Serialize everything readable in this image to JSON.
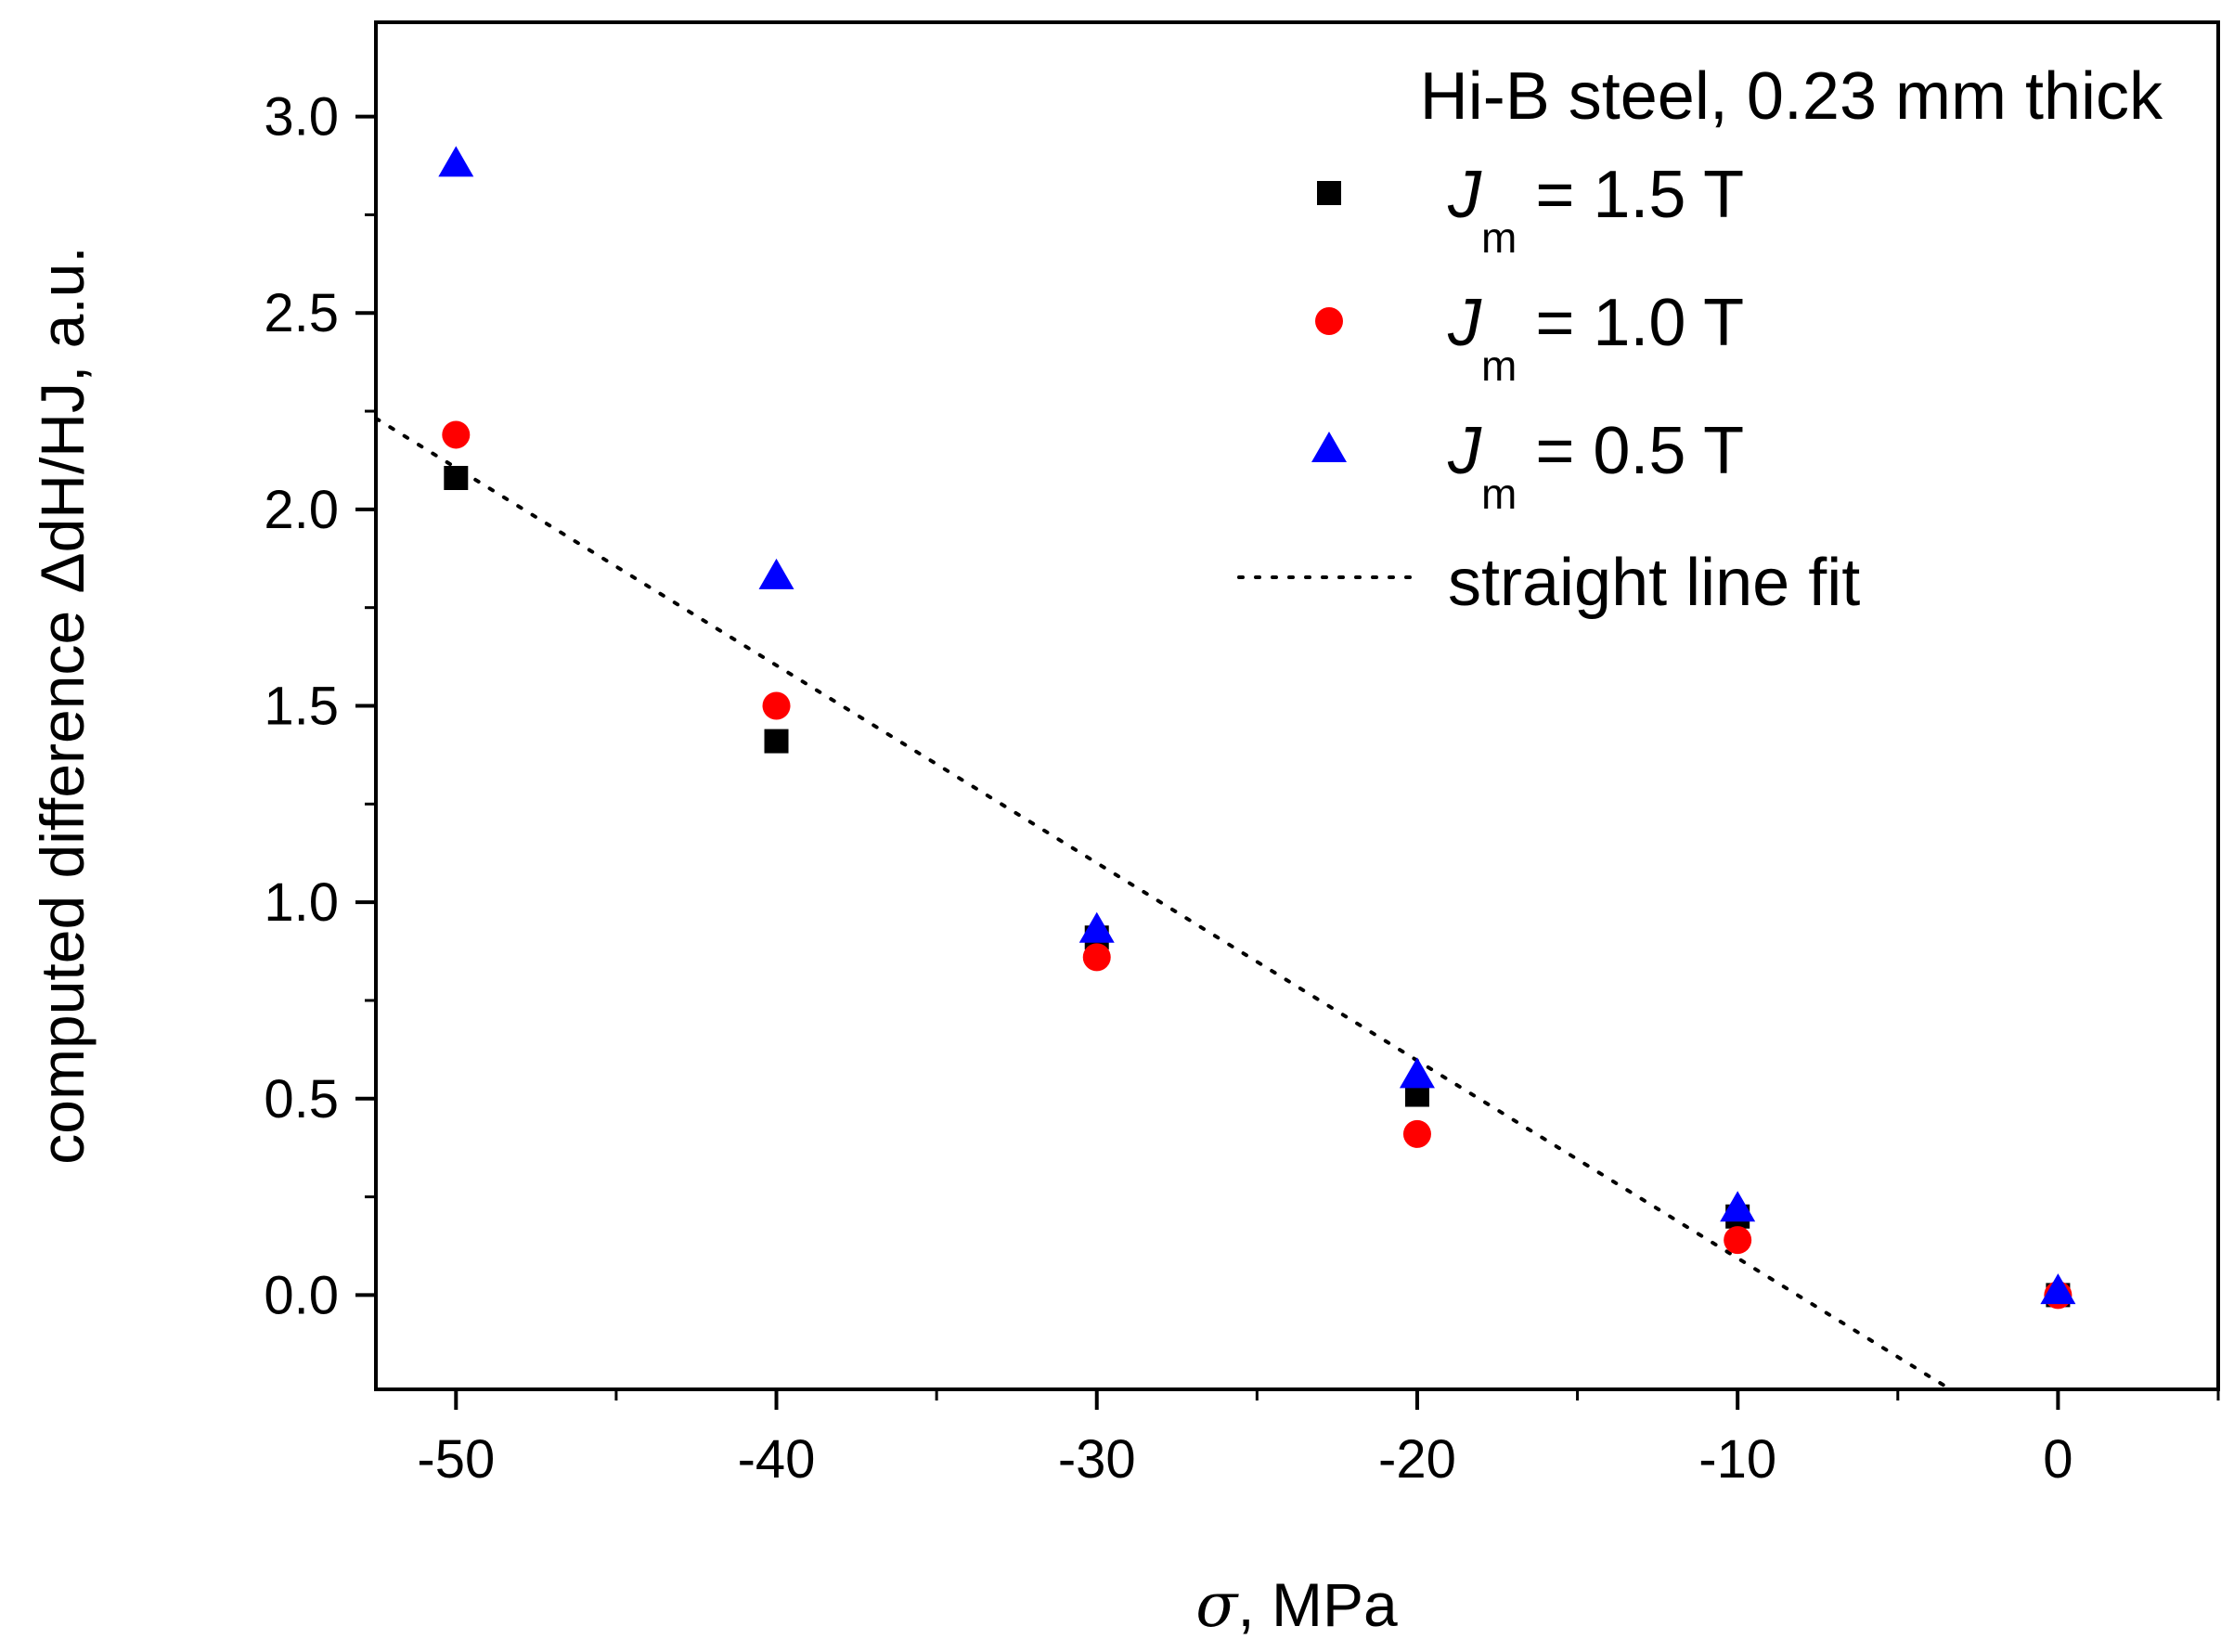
{
  "chart_data": {
    "type": "scatter",
    "title": "Hi-B steel, 0.23 mm thick",
    "xlabel_symbol": "σ",
    "xlabel": ", MPa",
    "ylabel": "computed difference ΔdH/HJ, a.u.",
    "xlim": [
      -52.5,
      5
    ],
    "ylim": [
      -0.24,
      3.24
    ],
    "x_ticks": [
      -50,
      -40,
      -30,
      -20,
      -10,
      0
    ],
    "x_tick_labels": [
      "-50",
      "-40",
      "-30",
      "-20",
      "-10",
      "0"
    ],
    "y_ticks": [
      0.0,
      0.5,
      1.0,
      1.5,
      2.0,
      2.5,
      3.0
    ],
    "y_tick_labels": [
      "0.0",
      "0.5",
      "1.0",
      "1.5",
      "2.0",
      "2.5",
      "3.0"
    ],
    "grid": false,
    "legend_position": "top-right",
    "series": [
      {
        "name_prefix": "J",
        "name_sub": "m",
        "name_suffix": " = 1.5 T",
        "marker": "square",
        "color": "#000000",
        "points": [
          [
            -50,
            2.08
          ],
          [
            -40,
            1.41
          ],
          [
            -30,
            0.91
          ],
          [
            -20,
            0.51
          ],
          [
            -10,
            0.2
          ],
          [
            0,
            0.0
          ]
        ]
      },
      {
        "name_prefix": "J",
        "name_sub": "m",
        "name_suffix": " = 1.0 T",
        "marker": "circle",
        "color": "#ff0000",
        "points": [
          [
            -50,
            2.19
          ],
          [
            -40,
            1.5
          ],
          [
            -30,
            0.86
          ],
          [
            -20,
            0.41
          ],
          [
            -10,
            0.14
          ],
          [
            0,
            0.0
          ]
        ]
      },
      {
        "name_prefix": "J",
        "name_sub": "m",
        "name_suffix": " = 0.5 T",
        "marker": "triangle",
        "color": "#0000ff",
        "points": [
          [
            -50,
            2.88
          ],
          [
            -40,
            1.83
          ],
          [
            -30,
            0.93
          ],
          [
            -20,
            0.56
          ],
          [
            -10,
            0.22
          ],
          [
            0,
            0.01
          ]
        ]
      }
    ],
    "fit_line": {
      "name": "straight line fit",
      "style": "dotted",
      "color": "#000000",
      "slope": -0.0503,
      "intercept": -0.409,
      "x_range": [
        -52.5,
        -3.5
      ]
    }
  }
}
